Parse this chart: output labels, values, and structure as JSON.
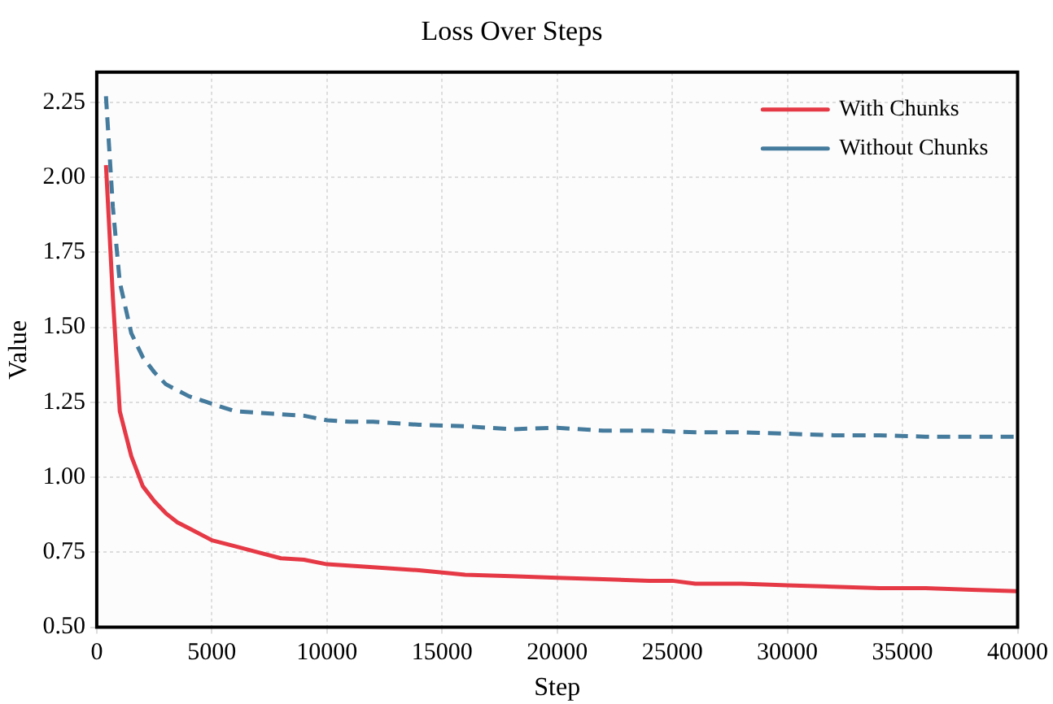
{
  "chart_data": {
    "type": "line",
    "title": "Loss Over Steps",
    "xlabel": "Step",
    "ylabel": "Value",
    "xlim": [
      0,
      40000
    ],
    "xticks": [
      0,
      5000,
      10000,
      15000,
      20000,
      25000,
      30000,
      35000,
      40000
    ],
    "ylim": [
      0.5,
      2.35
    ],
    "yticks": [
      {
        "value": 0.5,
        "label": "0.50"
      },
      0.75,
      {
        "value": 1,
        "label": "1.00"
      },
      1.25,
      {
        "value": 1.5,
        "label": "1.50"
      },
      1.75,
      {
        "value": 2,
        "label": "2.00"
      },
      2.25
    ],
    "grid": true,
    "legend": "top right",
    "marker": "none",
    "series": [
      {
        "name": "With Chunks",
        "color": "#e63946",
        "line_style": "solid",
        "x": [
          400,
          700,
          1000,
          1500,
          2000,
          2500,
          3000,
          3500,
          4000,
          5000,
          6000,
          7000,
          8000,
          9000,
          10000,
          12000,
          14000,
          16000,
          18000,
          20000,
          22000,
          24000,
          25000,
          26000,
          28000,
          30000,
          32000,
          34000,
          36000,
          38000,
          40000
        ],
        "values": [
          2.04,
          1.6,
          1.22,
          1.07,
          0.97,
          0.92,
          0.88,
          0.85,
          0.83,
          0.79,
          0.77,
          0.75,
          0.73,
          0.725,
          0.71,
          0.7,
          0.69,
          0.675,
          0.67,
          0.665,
          0.66,
          0.655,
          0.655,
          0.645,
          0.645,
          0.64,
          0.635,
          0.63,
          0.63,
          0.625,
          0.62
        ]
      },
      {
        "name": "Without Chunks",
        "color": "#457b9d",
        "line_style": "dashed",
        "x": [
          400,
          700,
          1000,
          1500,
          2000,
          2500,
          3000,
          4000,
          5000,
          6000,
          7000,
          8000,
          9000,
          10000,
          11000,
          12000,
          14000,
          16000,
          18000,
          20000,
          22000,
          24000,
          26000,
          28000,
          30000,
          32000,
          34000,
          36000,
          38000,
          40000
        ],
        "values": [
          2.27,
          1.9,
          1.65,
          1.48,
          1.4,
          1.35,
          1.31,
          1.27,
          1.245,
          1.22,
          1.215,
          1.21,
          1.205,
          1.19,
          1.185,
          1.185,
          1.175,
          1.17,
          1.16,
          1.165,
          1.155,
          1.155,
          1.15,
          1.15,
          1.145,
          1.14,
          1.14,
          1.135,
          1.135,
          1.135
        ]
      }
    ]
  }
}
